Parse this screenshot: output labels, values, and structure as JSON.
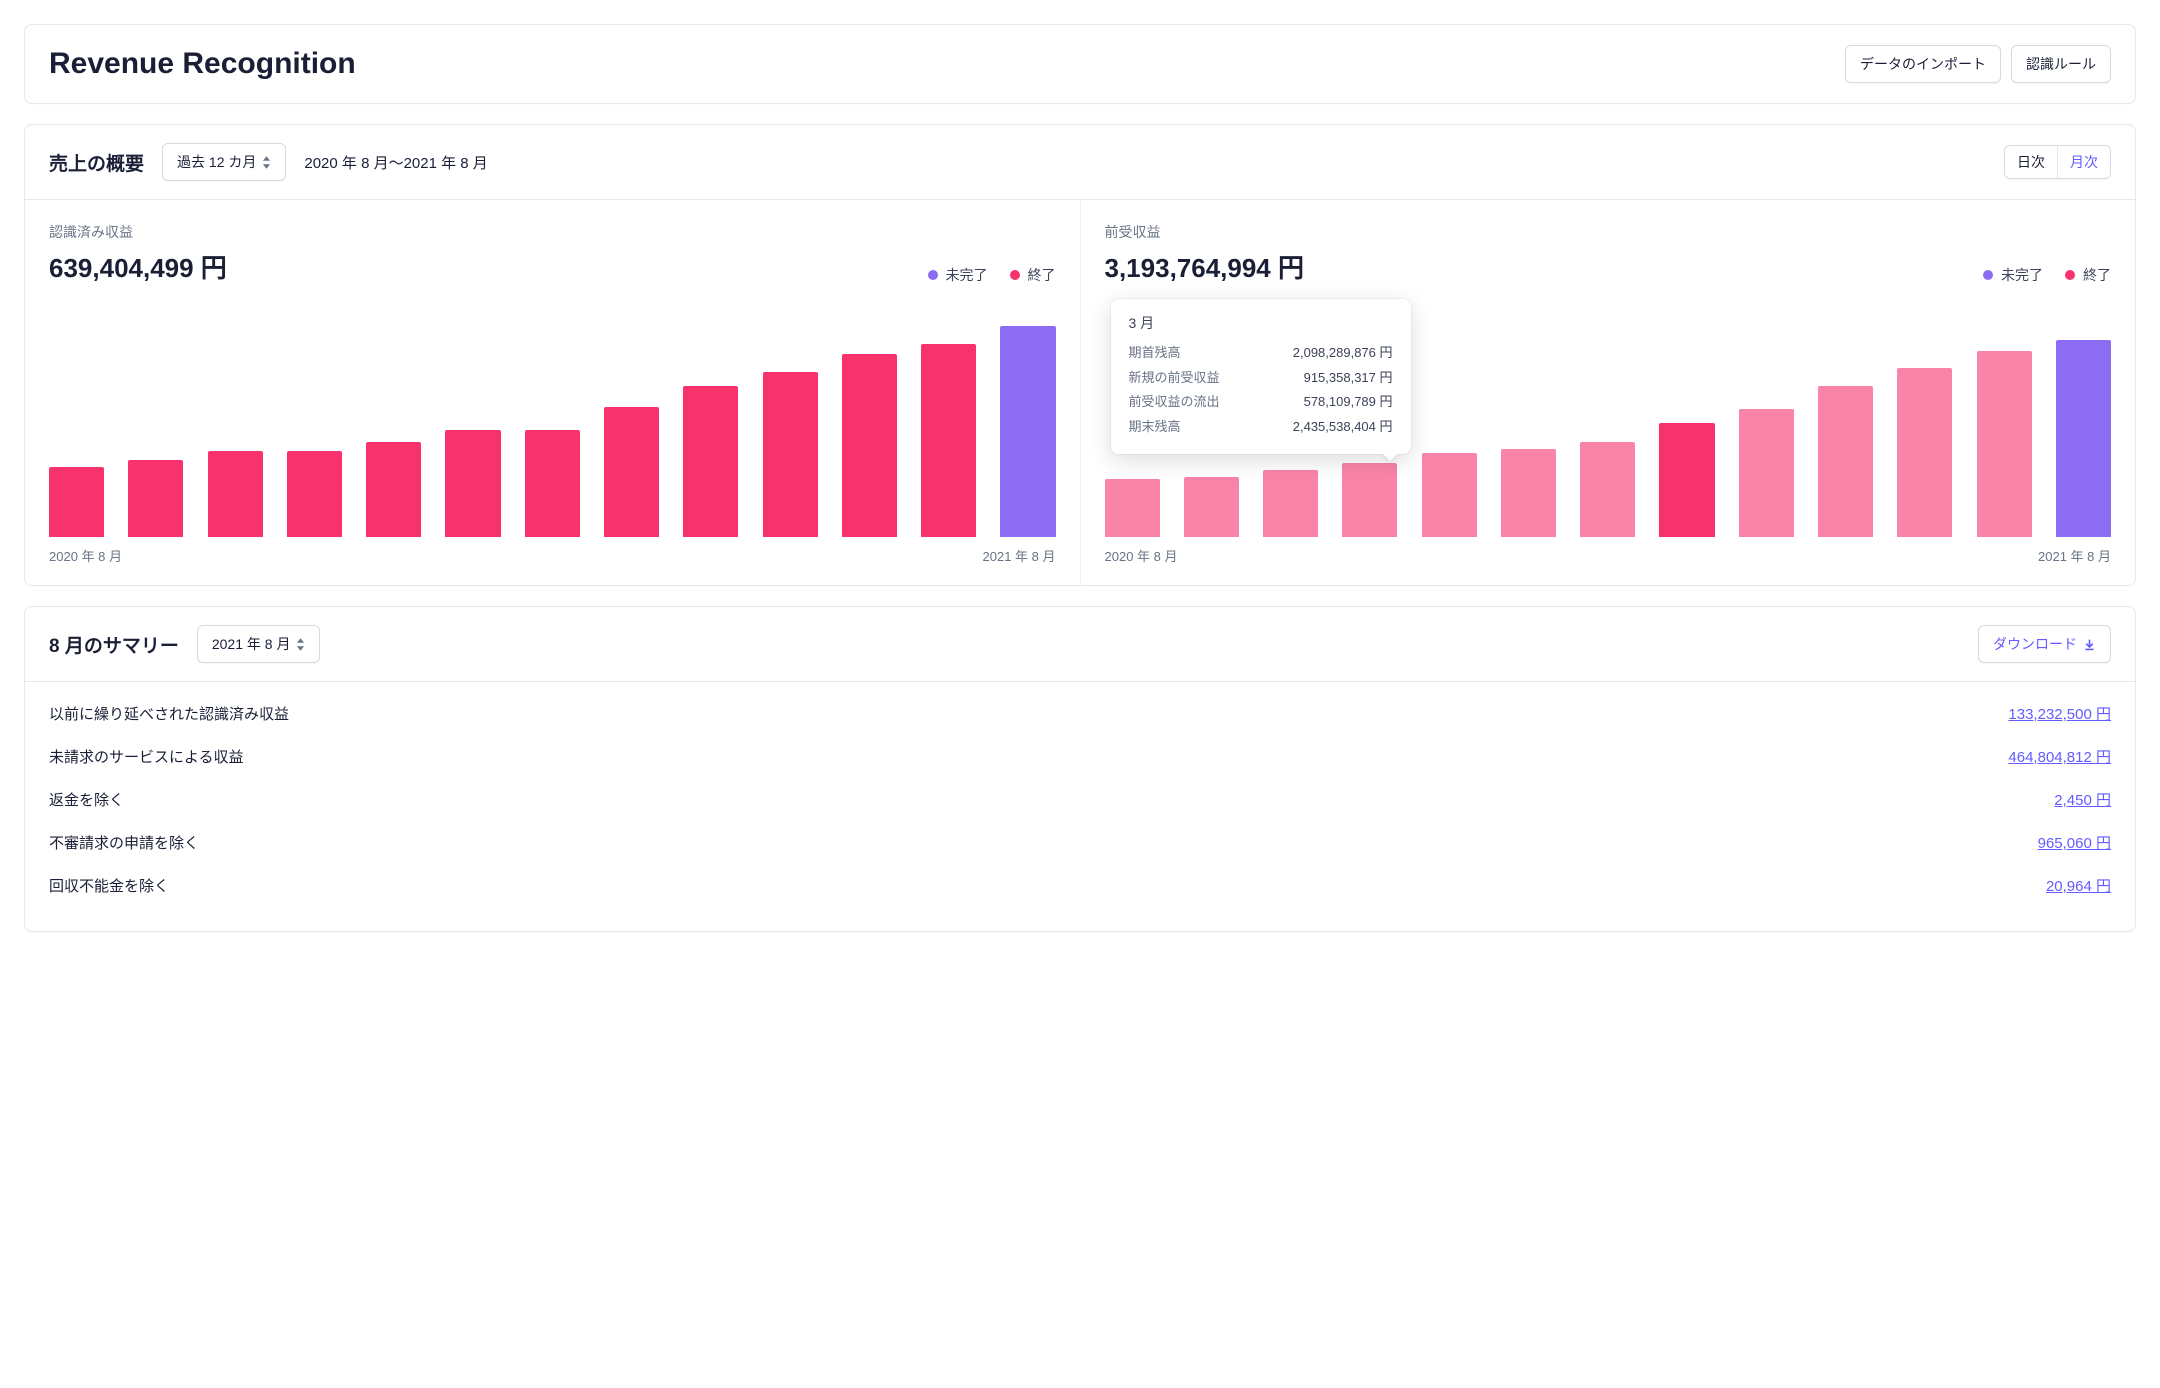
{
  "colors": {
    "purple": "#8c6cf2",
    "pink": "#f7326d",
    "pink_light": "#f984a7",
    "link": "#635bff",
    "text_muted": "#697386"
  },
  "header": {
    "title": "Revenue Recognition",
    "import_label": "データのインポート",
    "rules_label": "認識ルール"
  },
  "overview": {
    "section_title": "売上の概要",
    "range_selector": "過去 12 カ月",
    "range_text": "2020 年 8 月～2021 年 8 月",
    "seg_daily": "日次",
    "seg_monthly": "月次",
    "legend_open": "未完了",
    "legend_closed": "終了",
    "xaxis_start": "2020 年 8 月",
    "xaxis_end": "2021 年 8 月"
  },
  "chart_left": {
    "type": "bar",
    "label": "認識済み収益",
    "value": "639,404,499 円",
    "heights_pct": [
      30,
      33,
      37,
      37,
      41,
      46,
      46,
      56,
      65,
      71,
      79,
      83,
      91
    ],
    "bar_colors": [
      "#f7326d",
      "#f7326d",
      "#f7326d",
      "#f7326d",
      "#f7326d",
      "#f7326d",
      "#f7326d",
      "#f7326d",
      "#f7326d",
      "#f7326d",
      "#f7326d",
      "#f7326d",
      "#8c6cf2"
    ]
  },
  "chart_right": {
    "type": "bar",
    "label": "前受収益",
    "value": "3,193,764,994 円",
    "heights_pct": [
      25,
      26,
      29,
      32,
      36,
      38,
      41,
      49,
      55,
      65,
      73,
      80,
      85
    ],
    "bar_colors": [
      "#f984a7",
      "#f984a7",
      "#f984a7",
      "#f984a7",
      "#f984a7",
      "#f984a7",
      "#f984a7",
      "#f7326d",
      "#f984a7",
      "#f984a7",
      "#f984a7",
      "#f984a7",
      "#8c6cf2"
    ],
    "highlight_index": 7,
    "tooltip": {
      "title": "3 月",
      "rows": [
        {
          "k": "期首残高",
          "v": "2,098,289,876 円"
        },
        {
          "k": "新規の前受収益",
          "v": "915,358,317 円"
        },
        {
          "k": "前受収益の流出",
          "v": "578,109,789 円"
        },
        {
          "k": "期末残高",
          "v": "2,435,538,404 円"
        }
      ]
    }
  },
  "summary": {
    "title": "8 月のサマリー",
    "month_selector": "2021 年 8 月",
    "download_label": "ダウンロード",
    "rows": [
      {
        "label": "以前に繰り延べされた認識済み収益",
        "amount": "133,232,500 円"
      },
      {
        "label": "未請求のサービスによる収益",
        "amount": "464,804,812 円"
      },
      {
        "label": "返金を除く",
        "amount": "2,450 円"
      },
      {
        "label": "不審請求の申請を除く",
        "amount": "965,060 円"
      },
      {
        "label": "回収不能金を除く",
        "amount": "20,964 円"
      }
    ]
  }
}
